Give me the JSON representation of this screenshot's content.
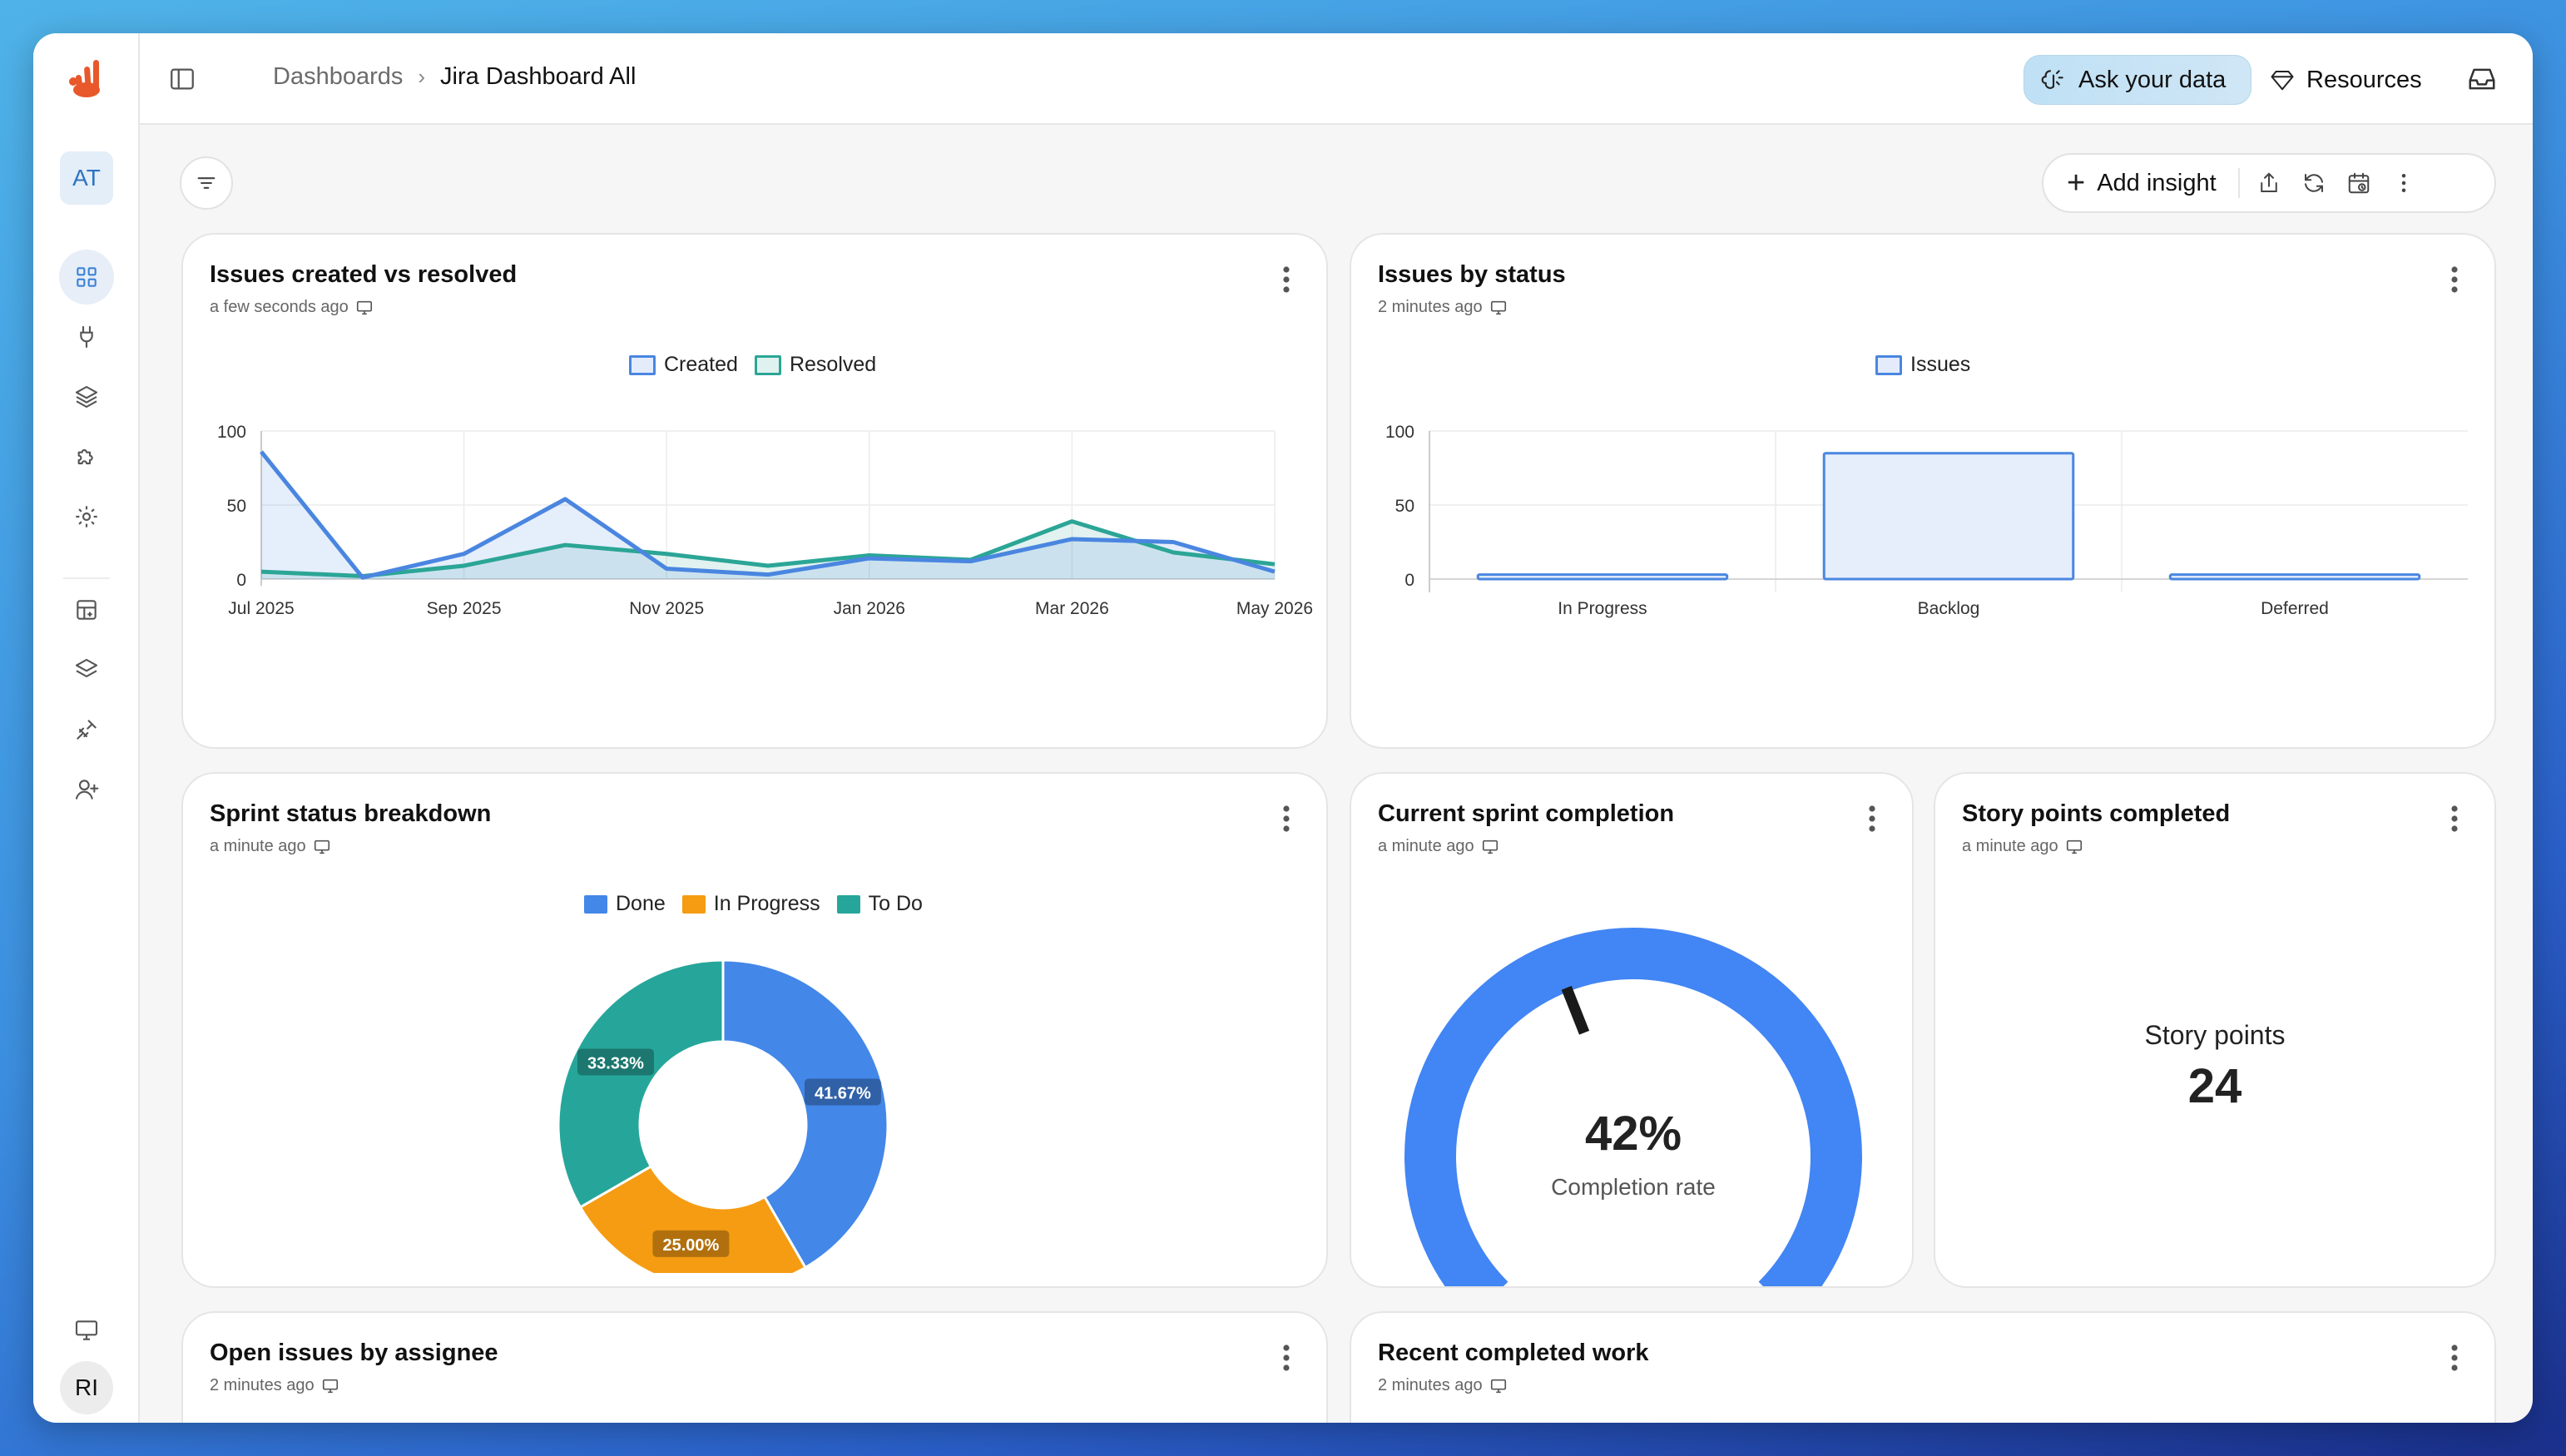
{
  "app": {
    "user_initials_top": "AT",
    "user_initials_bottom": "RI"
  },
  "header": {
    "breadcrumb_root": "Dashboards",
    "breadcrumb_current": "Jira Dashboard All",
    "ask_label": "Ask your data",
    "resources_label": "Resources"
  },
  "toolbar": {
    "add_insight_label": "Add insight"
  },
  "cards": {
    "created_resolved": {
      "title": "Issues created vs resolved",
      "subtitle": "a few seconds ago"
    },
    "by_status": {
      "title": "Issues by status",
      "subtitle": "2 minutes ago"
    },
    "sprint_breakdown": {
      "title": "Sprint status breakdown",
      "subtitle": "a minute ago"
    },
    "sprint_completion": {
      "title": "Current sprint completion",
      "subtitle": "a minute ago",
      "value_text": "42%",
      "value_label": "Completion rate",
      "fraction": 0.42
    },
    "story_points": {
      "title": "Story points completed",
      "subtitle": "a minute ago",
      "label": "Story points",
      "value": "24"
    },
    "open_issues": {
      "title": "Open issues by assignee",
      "subtitle": "2 minutes ago"
    },
    "recent_work": {
      "title": "Recent completed work",
      "subtitle": "2 minutes ago"
    }
  },
  "colors": {
    "blue": "#4a86e0",
    "teal": "#2ba596",
    "orange": "#f59c12",
    "pie_blue": "#4387e8",
    "pie_teal": "#26a69a",
    "gauge_blue": "#4285f4"
  },
  "chart_data": [
    {
      "type": "area",
      "x": [
        "Jul 2025",
        "Aug 2025",
        "Sep 2025",
        "Oct 2025",
        "Nov 2025",
        "Dec 2025",
        "Jan 2026",
        "Feb 2026",
        "Mar 2026",
        "Apr 2026",
        "May 2026"
      ],
      "xticks": [
        "Jul 2025",
        "Sep 2025",
        "Nov 2025",
        "Jan 2026",
        "Mar 2026",
        "May 2026"
      ],
      "yticks": [
        0,
        50,
        100
      ],
      "ylim": [
        0,
        100
      ],
      "legend_position": "top",
      "grid": true,
      "series": [
        {
          "name": "Created",
          "values": [
            86,
            1,
            17,
            54,
            7,
            3,
            14,
            12,
            27,
            25,
            5
          ]
        },
        {
          "name": "Resolved",
          "values": [
            5,
            2,
            9,
            23,
            17,
            9,
            16,
            13,
            39,
            18,
            10
          ]
        }
      ]
    },
    {
      "type": "bar",
      "categories": [
        "In Progress",
        "Backlog",
        "Deferred"
      ],
      "yticks": [
        0,
        50,
        100
      ],
      "ylim": [
        0,
        100
      ],
      "legend_position": "top",
      "grid": true,
      "series": [
        {
          "name": "Issues",
          "values": [
            3,
            85,
            3
          ]
        }
      ]
    },
    {
      "type": "pie",
      "donut": true,
      "legend_position": "top",
      "series": [
        {
          "name": "Done",
          "value": 41.67,
          "label": "41.67%"
        },
        {
          "name": "In Progress",
          "value": 25.0,
          "label": "25.00%"
        },
        {
          "name": "To Do",
          "value": 33.33,
          "label": "33.33%"
        }
      ]
    }
  ]
}
